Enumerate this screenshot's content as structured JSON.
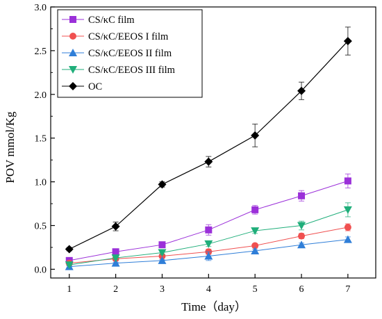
{
  "chart_data": {
    "type": "line",
    "xlabel": "Time（day）",
    "ylabel": "POV mmol/Kg",
    "xlim": [
      0.6,
      7.6
    ],
    "ylim": [
      -0.1,
      3.0
    ],
    "xticks": [
      1,
      2,
      3,
      4,
      5,
      6,
      7
    ],
    "yticks": [
      0.0,
      0.5,
      1.0,
      1.5,
      2.0,
      2.5,
      3.0
    ],
    "ytick_labels": [
      "0.0",
      "0.5",
      "1.0",
      "1.5",
      "2.0",
      "2.5",
      "3.0"
    ],
    "legend_position": "top-left",
    "grid": false,
    "x": [
      1,
      2,
      3,
      4,
      5,
      6,
      7
    ],
    "series": [
      {
        "name": "CS/κC film",
        "color": "#9b30d9",
        "marker": "square",
        "values": [
          0.1,
          0.2,
          0.28,
          0.45,
          0.68,
          0.84,
          1.01
        ],
        "errors": [
          0.02,
          0.02,
          0.02,
          0.06,
          0.05,
          0.06,
          0.08
        ]
      },
      {
        "name": "CS/κC/EEOS I film",
        "color": "#f05050",
        "marker": "circle",
        "values": [
          0.07,
          0.12,
          0.15,
          0.2,
          0.27,
          0.38,
          0.48
        ],
        "errors": [
          0.01,
          0.02,
          0.02,
          0.03,
          0.02,
          0.03,
          0.04
        ]
      },
      {
        "name": "CS/κC/EEOS II film",
        "color": "#2f7ed8",
        "marker": "triangle-up",
        "values": [
          0.03,
          0.07,
          0.1,
          0.15,
          0.21,
          0.28,
          0.34
        ],
        "errors": [
          0.01,
          0.01,
          0.01,
          0.05,
          0.02,
          0.02,
          0.03
        ]
      },
      {
        "name": "CS/κC/EEOS III film",
        "color": "#1fae7a",
        "marker": "triangle-down",
        "values": [
          0.05,
          0.13,
          0.19,
          0.29,
          0.44,
          0.5,
          0.68
        ],
        "errors": [
          0.01,
          0.02,
          0.02,
          0.03,
          0.03,
          0.05,
          0.08
        ]
      },
      {
        "name": "OC",
        "color": "#000000",
        "marker": "diamond",
        "values": [
          0.23,
          0.49,
          0.97,
          1.23,
          1.53,
          2.04,
          2.61
        ],
        "errors": [
          0.02,
          0.05,
          0.03,
          0.06,
          0.13,
          0.1,
          0.16
        ]
      }
    ]
  }
}
